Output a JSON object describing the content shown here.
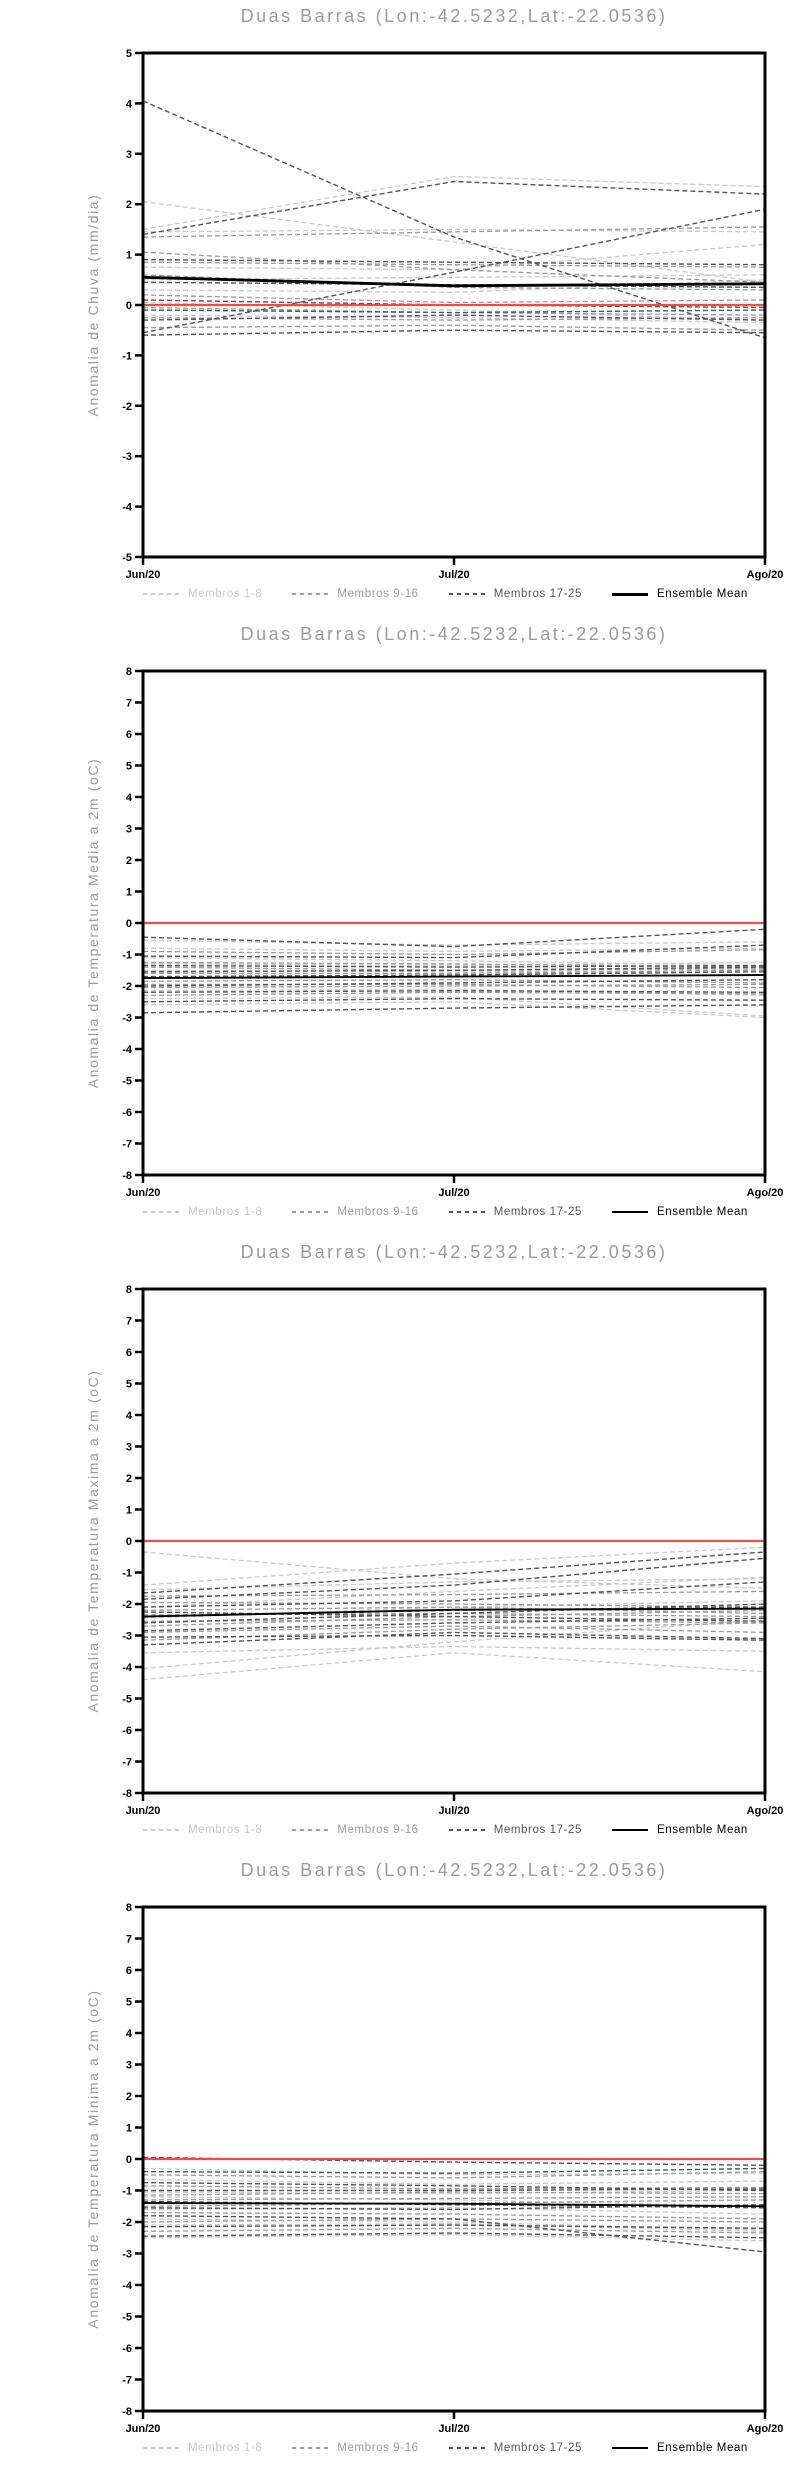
{
  "colors": {
    "members_1_8": "#c9c9c9",
    "members_9_16": "#9a9a9a",
    "members_17_25": "#555555",
    "ensemble_mean": "#000000",
    "zero_line": "#f04b4b",
    "title_text": "#9b9b9b",
    "tick_text": "#000000"
  },
  "chart_data": [
    {
      "type": "line",
      "title": "Duas Barras (Lon:-42.5232,Lat:-22.0536)",
      "ylabel": "Anomalia de Chuva (mm/dia)",
      "xlabel": "",
      "ylim": [
        -5,
        5
      ],
      "ytick_step": 1,
      "grid": false,
      "x_labels": [
        "Jun/20",
        "Jul/20",
        "Ago/20"
      ],
      "legend_position": "bottom",
      "legend": {
        "items": [
          {
            "label": "Membros 1-8",
            "color": "#c9c9c9",
            "sample": "dashed"
          },
          {
            "label": "Membros 9-16",
            "color": "#9a9a9a",
            "sample": "dashed"
          },
          {
            "label": "Membros 17-25",
            "color": "#555555",
            "sample": "dashed"
          },
          {
            "label": "Ensemble Mean",
            "color": "#000000",
            "sample": "solid"
          }
        ]
      },
      "series": {
        "members_1_8": [
          [
            2.05,
            1.25,
            0.45
          ],
          [
            1.5,
            2.55,
            2.35
          ],
          [
            1.45,
            1.5,
            1.45
          ],
          [
            0.75,
            0.7,
            1.2
          ],
          [
            0.5,
            0.55,
            0.6
          ],
          [
            0.3,
            0.25,
            0.5
          ],
          [
            0.05,
            -0.1,
            -0.3
          ],
          [
            -0.2,
            -0.25,
            -0.35
          ]
        ],
        "members_9_16": [
          [
            1.35,
            1.45,
            1.55
          ],
          [
            1.05,
            0.7,
            0.45
          ],
          [
            0.85,
            0.8,
            0.75
          ],
          [
            0.6,
            0.35,
            0.3
          ],
          [
            0.2,
            0.05,
            0.1
          ],
          [
            -0.05,
            -0.15,
            -0.2
          ],
          [
            -0.25,
            -0.3,
            -0.25
          ],
          [
            -0.45,
            -0.4,
            -0.5
          ]
        ],
        "members_17_25": [
          [
            4.05,
            1.35,
            -0.65
          ],
          [
            1.4,
            2.45,
            2.2
          ],
          [
            -0.55,
            0.65,
            1.9
          ],
          [
            0.9,
            0.85,
            0.8
          ],
          [
            0.45,
            0.4,
            0.35
          ],
          [
            0.1,
            0.0,
            -0.05
          ],
          [
            -0.1,
            -0.15,
            -0.1
          ],
          [
            -0.3,
            -0.2,
            -0.3
          ],
          [
            -0.6,
            -0.5,
            -0.55
          ]
        ],
        "ensemble_mean": [
          0.55,
          0.38,
          0.42
        ],
        "zero_line": [
          0,
          0,
          0
        ]
      }
    },
    {
      "type": "line",
      "title": "Duas Barras (Lon:-42.5232,Lat:-22.0536)",
      "ylabel": "Anomalia de Temperatura Media a 2m (oC)",
      "xlabel": "",
      "ylim": [
        -8,
        8
      ],
      "ytick_step": 1,
      "grid": false,
      "x_labels": [
        "Jun/20",
        "Jul/20",
        "Ago/20"
      ],
      "legend_position": "bottom",
      "legend": {
        "items": [
          {
            "label": "Membros 1-8",
            "color": "#c9c9c9",
            "sample": "dashed"
          },
          {
            "label": "Membros 9-16",
            "color": "#9a9a9a",
            "sample": "dashed"
          },
          {
            "label": "Membros 17-25",
            "color": "#555555",
            "sample": "dashed"
          },
          {
            "label": "Ensemble Mean",
            "color": "#000000",
            "sample": "solid"
          }
        ]
      },
      "series": {
        "members_1_8": [
          [
            -0.55,
            -0.7,
            -0.6
          ],
          [
            -0.8,
            -0.9,
            -0.8
          ],
          [
            -1.1,
            -1.2,
            -1.35
          ],
          [
            -1.5,
            -1.55,
            -1.5
          ],
          [
            -2.15,
            -2.1,
            -2.3
          ],
          [
            -2.4,
            -2.35,
            -2.95
          ],
          [
            -2.6,
            -2.5,
            -3.0
          ],
          [
            -1.3,
            -1.35,
            -1.25
          ]
        ],
        "members_9_16": [
          [
            -0.9,
            -1.0,
            -0.85
          ],
          [
            -1.25,
            -1.3,
            -1.4
          ],
          [
            -1.6,
            -1.6,
            -1.5
          ],
          [
            -1.85,
            -1.8,
            -1.9
          ],
          [
            -2.3,
            -2.2,
            -2.25
          ],
          [
            -1.95,
            -1.95,
            -2.05
          ],
          [
            -1.4,
            -1.5,
            -1.45
          ],
          [
            -2.05,
            -2.0,
            -1.95
          ]
        ],
        "members_17_25": [
          [
            -0.45,
            -0.75,
            -0.2
          ],
          [
            -1.05,
            -1.1,
            -0.7
          ],
          [
            -1.35,
            -1.4,
            -1.35
          ],
          [
            -1.55,
            -1.5,
            -1.4
          ],
          [
            -1.7,
            -1.65,
            -1.55
          ],
          [
            -2.0,
            -1.9,
            -1.8
          ],
          [
            -2.2,
            -2.15,
            -2.2
          ],
          [
            -2.5,
            -2.4,
            -2.45
          ],
          [
            -2.85,
            -2.7,
            -2.6
          ]
        ],
        "ensemble_mean": [
          -1.75,
          -1.7,
          -1.65
        ],
        "zero_line": [
          0,
          0,
          0
        ]
      }
    },
    {
      "type": "line",
      "title": "Duas Barras (Lon:-42.5232,Lat:-22.0536)",
      "ylabel": "Anomalia de Temperatura Maxima a 2m (oC)",
      "xlabel": "",
      "ylim": [
        -8,
        8
      ],
      "ytick_step": 1,
      "grid": false,
      "x_labels": [
        "Jun/20",
        "Jul/20",
        "Ago/20"
      ],
      "legend_position": "bottom",
      "legend": {
        "items": [
          {
            "label": "Membros 1-8",
            "color": "#c9c9c9",
            "sample": "dashed"
          },
          {
            "label": "Membros 9-16",
            "color": "#9a9a9a",
            "sample": "dashed"
          },
          {
            "label": "Membros 17-25",
            "color": "#555555",
            "sample": "dashed"
          },
          {
            "label": "Ensemble Mean",
            "color": "#000000",
            "sample": "solid"
          }
        ]
      },
      "series": {
        "members_1_8": [
          [
            -4.4,
            -3.55,
            -4.15
          ],
          [
            -4.05,
            -3.2,
            -2.5
          ],
          [
            -3.55,
            -3.35,
            -3.5
          ],
          [
            -2.45,
            -2.1,
            -1.9
          ],
          [
            -2.1,
            -1.6,
            -1.15
          ],
          [
            -1.55,
            -1.3,
            -1.2
          ],
          [
            -1.4,
            -0.7,
            -0.2
          ],
          [
            -0.35,
            -1.2,
            -1.5
          ]
        ],
        "members_9_16": [
          [
            -3.15,
            -2.8,
            -2.6
          ],
          [
            -2.9,
            -2.7,
            -2.9
          ],
          [
            -2.7,
            -2.4,
            -2.2
          ],
          [
            -2.55,
            -2.5,
            -2.6
          ],
          [
            -2.35,
            -2.3,
            -2.4
          ],
          [
            -2.2,
            -2.1,
            -2.3
          ],
          [
            -1.95,
            -2.0,
            -2.1
          ],
          [
            -1.75,
            -1.7,
            -1.6
          ]
        ],
        "members_17_25": [
          [
            -3.3,
            -2.9,
            -3.1
          ],
          [
            -3.05,
            -3.0,
            -3.15
          ],
          [
            -2.85,
            -2.6,
            -2.45
          ],
          [
            -2.6,
            -2.3,
            -2.0
          ],
          [
            -2.4,
            -2.2,
            -2.1
          ],
          [
            -2.25,
            -2.4,
            -2.55
          ],
          [
            -2.1,
            -1.9,
            -1.3
          ],
          [
            -1.85,
            -1.4,
            -0.55
          ],
          [
            -1.65,
            -1.05,
            -0.35
          ]
        ],
        "ensemble_mean": [
          -2.4,
          -2.18,
          -2.15
        ],
        "zero_line": [
          0,
          0,
          0
        ]
      }
    },
    {
      "type": "line",
      "title": "Duas Barras (Lon:-42.5232,Lat:-22.0536)",
      "ylabel": "Anomalia de Temperatura Minima a 2m (oC)",
      "xlabel": "",
      "ylim": [
        -8,
        8
      ],
      "ytick_step": 1,
      "grid": false,
      "x_labels": [
        "Jun/20",
        "Jul/20",
        "Ago/20"
      ],
      "legend_position": "bottom",
      "legend": {
        "items": [
          {
            "label": "Membros 1-8",
            "color": "#c9c9c9",
            "sample": "dashed"
          },
          {
            "label": "Membros 9-16",
            "color": "#9a9a9a",
            "sample": "dashed"
          },
          {
            "label": "Membros 17-25",
            "color": "#555555",
            "sample": "dashed"
          },
          {
            "label": "Ensemble Mean",
            "color": "#000000",
            "sample": "solid"
          }
        ]
      },
      "series": {
        "members_1_8": [
          [
            -0.3,
            -0.5,
            -0.45
          ],
          [
            -0.65,
            -0.8,
            -0.7
          ],
          [
            -1.05,
            -1.1,
            -1.0
          ],
          [
            -1.2,
            -1.3,
            -1.5
          ],
          [
            -1.6,
            -1.55,
            -1.75
          ],
          [
            -1.9,
            -2.0,
            -2.25
          ],
          [
            -2.1,
            -2.05,
            -2.3
          ],
          [
            -2.5,
            -2.4,
            -2.6
          ]
        ],
        "members_9_16": [
          [
            -0.5,
            -0.6,
            -0.4
          ],
          [
            -0.85,
            -0.95,
            -0.9
          ],
          [
            -1.15,
            -1.05,
            -1.1
          ],
          [
            -1.3,
            -1.25,
            -1.2
          ],
          [
            -1.5,
            -1.4,
            -1.3
          ],
          [
            -1.7,
            -1.75,
            -1.9
          ],
          [
            -2.0,
            -1.9,
            -2.0
          ],
          [
            -2.3,
            -2.2,
            -2.35
          ]
        ],
        "members_17_25": [
          [
            0.05,
            -0.1,
            -0.2
          ],
          [
            -0.4,
            -0.45,
            -0.3
          ],
          [
            -0.75,
            -0.85,
            -1.0
          ],
          [
            -1.0,
            -1.0,
            -0.95
          ],
          [
            -1.35,
            -1.45,
            -1.55
          ],
          [
            -1.55,
            -1.6,
            -1.45
          ],
          [
            -1.8,
            -1.9,
            -2.95
          ],
          [
            -2.15,
            -2.1,
            -2.2
          ],
          [
            -2.45,
            -2.35,
            -2.5
          ]
        ],
        "ensemble_mean": [
          -1.4,
          -1.42,
          -1.5
        ],
        "zero_line": [
          0,
          0,
          0
        ]
      }
    }
  ]
}
